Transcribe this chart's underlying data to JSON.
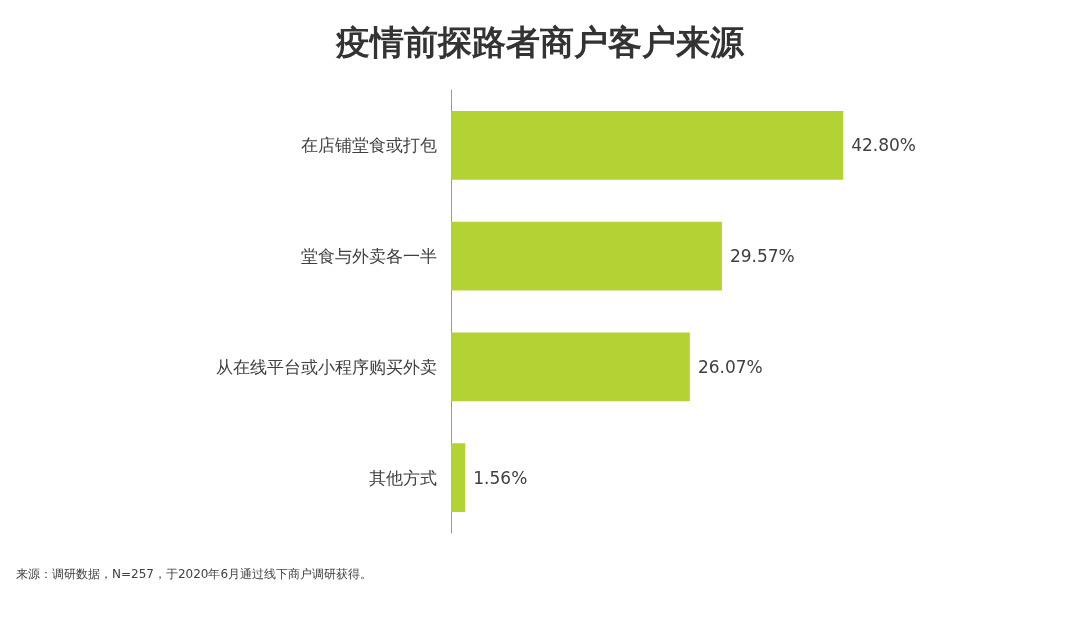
{
  "chart_data": {
    "type": "bar",
    "orientation": "horizontal",
    "title": "疫情前探路者商户客户来源",
    "categories": [
      "在店铺堂食或打包",
      "堂食与外卖各一半",
      "从在线平台或小程序购买外卖",
      "其他方式"
    ],
    "values": [
      42.8,
      29.57,
      26.07,
      1.56
    ],
    "value_labels": [
      "42.80%",
      "29.57%",
      "26.07%",
      "1.56%"
    ],
    "color": "#b3d334",
    "annotations": [
      "来源：调研数据，N=257，于2020年6月通过线下商户调研获得。"
    ]
  }
}
